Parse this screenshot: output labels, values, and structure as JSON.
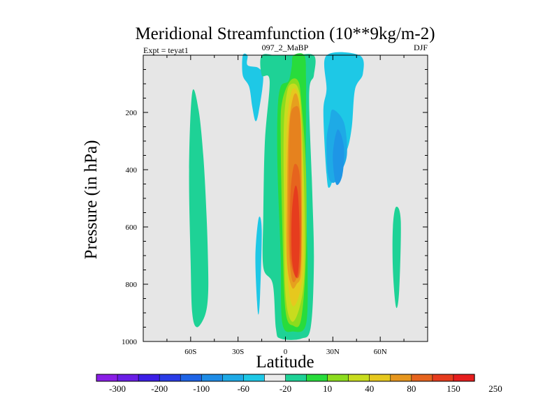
{
  "chart_data": {
    "type": "heatmap",
    "title": "Meridional Streamfunction (10**9kg/m-2)",
    "left_label": "Expt = teyat1",
    "center_label": "097_2_MaBP",
    "right_label": "DJF",
    "xlabel": "Latitude",
    "ylabel": "Pressure (in hPa)",
    "xlim": [
      -90,
      90
    ],
    "ylim": [
      0,
      1000
    ],
    "x_ticks": [
      {
        "value": -60,
        "label": "60S"
      },
      {
        "value": -30,
        "label": "30S"
      },
      {
        "value": 0,
        "label": "0"
      },
      {
        "value": 30,
        "label": "30N"
      },
      {
        "value": 60,
        "label": "60N"
      }
    ],
    "y_ticks": [
      {
        "value": 200,
        "label": "200"
      },
      {
        "value": 400,
        "label": "400"
      },
      {
        "value": 600,
        "label": "600"
      },
      {
        "value": 800,
        "label": "800"
      },
      {
        "value": 1000,
        "label": "1000"
      }
    ],
    "background_color": "#e6e6e6",
    "colorbar": {
      "colors": [
        "#8a1ee6",
        "#6a1ee6",
        "#3c1ee6",
        "#2a3ce6",
        "#1e64e6",
        "#1e8ce6",
        "#1eaae6",
        "#1ec8e6",
        "#ebebeb",
        "#1ed296",
        "#28dc3c",
        "#8cdc1e",
        "#c8dc1e",
        "#e6c81e",
        "#e6961e",
        "#e6641e",
        "#e63c1e",
        "#e61e1e"
      ],
      "labels": [
        "-300",
        "-200",
        "-100",
        "-60",
        "-20",
        "10",
        "40",
        "80",
        "150",
        "250"
      ]
    },
    "levels": {
      "n20": "#1ec8e6",
      "n40": "#1eaae6",
      "n60": "#1e96e6",
      "p10": "#1ed296",
      "p25": "#28dc3c",
      "p40": "#8cdc1e",
      "p60": "#c8dc1e",
      "p80": "#e6c81e",
      "p100": "#e6a01e",
      "p150": "#e6821e",
      "p200": "#e6641e",
      "p250": "#e63c1e"
    },
    "cells": [
      {
        "name": "n20-cell-north-east",
        "level": "n20",
        "pts": [
          [
            26,
            1
          ],
          [
            47,
            1
          ],
          [
            49,
            65
          ],
          [
            44,
            120
          ],
          [
            42,
            250
          ],
          [
            39,
            330
          ],
          [
            33,
            385
          ],
          [
            28,
            462
          ],
          [
            26,
            415
          ],
          [
            24,
            200
          ],
          [
            26,
            120
          ]
        ]
      },
      {
        "name": "n40-cell-north",
        "level": "n40",
        "pts": [
          [
            30,
            190
          ],
          [
            37,
            235
          ],
          [
            39,
            340
          ],
          [
            36,
            400
          ],
          [
            31,
            445
          ],
          [
            27,
            420
          ],
          [
            26,
            300
          ],
          [
            28,
            230
          ]
        ]
      },
      {
        "name": "n60-cell-north",
        "level": "n60",
        "pts": [
          [
            33,
            260
          ],
          [
            37,
            320
          ],
          [
            36,
            420
          ],
          [
            32,
            450
          ],
          [
            30,
            350
          ]
        ]
      },
      {
        "name": "n20-cell-high-west",
        "level": "n20",
        "pts": [
          [
            -27,
            1
          ],
          [
            -24,
            1
          ],
          [
            -24,
            35
          ],
          [
            -17,
            45
          ],
          [
            -14,
            80
          ],
          [
            -17,
            200
          ],
          [
            -19,
            230
          ],
          [
            -21,
            180
          ],
          [
            -23,
            110
          ],
          [
            -27,
            70
          ]
        ]
      },
      {
        "name": "n20-cell-low-west",
        "level": "n20",
        "pts": [
          [
            -17,
            570
          ],
          [
            -15,
            610
          ],
          [
            -16,
            830
          ],
          [
            -17,
            905
          ],
          [
            -18,
            860
          ],
          [
            -19,
            700
          ]
        ]
      },
      {
        "name": "p10-cell-southern",
        "level": "p10",
        "pts": [
          [
            -59,
            130
          ],
          [
            -55,
            190
          ],
          [
            -52,
            350
          ],
          [
            -50,
            550
          ],
          [
            -49,
            720
          ],
          [
            -49,
            840
          ],
          [
            -51,
            910
          ],
          [
            -56,
            950
          ],
          [
            -59,
            900
          ],
          [
            -60,
            720
          ],
          [
            -61,
            400
          ]
        ]
      },
      {
        "name": "p10-cell-far-north",
        "level": "p10",
        "pts": [
          [
            70,
            530
          ],
          [
            73,
            580
          ],
          [
            72,
            820
          ],
          [
            70,
            880
          ],
          [
            68,
            750
          ],
          [
            68,
            600
          ]
        ]
      },
      {
        "name": "p10-cell-equatorial",
        "level": "p10",
        "pts": [
          [
            -15,
            1
          ],
          [
            -5,
            1
          ],
          [
            5,
            1
          ],
          [
            18,
            1
          ],
          [
            18,
            70
          ],
          [
            15,
            140
          ],
          [
            17,
            480
          ],
          [
            18,
            730
          ],
          [
            16,
            950
          ],
          [
            10,
            990
          ],
          [
            -3,
            990
          ],
          [
            -6,
            955
          ],
          [
            -8,
            800
          ],
          [
            -14,
            740
          ],
          [
            -14,
            560
          ],
          [
            -13,
            300
          ],
          [
            -10,
            90
          ],
          [
            -15,
            70
          ]
        ]
      },
      {
        "name": "p25-cell-equatorial",
        "level": "p25",
        "pts": [
          [
            5,
            1
          ],
          [
            12,
            1
          ],
          [
            13,
            80
          ],
          [
            13,
            200
          ],
          [
            13,
            500
          ],
          [
            14,
            750
          ],
          [
            13,
            940
          ],
          [
            5,
            965
          ],
          [
            -2,
            935
          ],
          [
            -3,
            700
          ],
          [
            -5,
            400
          ],
          [
            -5,
            200
          ],
          [
            -3,
            110
          ],
          [
            2,
            90
          ],
          [
            4,
            40
          ]
        ]
      },
      {
        "name": "p40-cell-equatorial",
        "level": "p40",
        "pts": [
          [
            3,
            90
          ],
          [
            8,
            90
          ],
          [
            10,
            160
          ],
          [
            13,
            400
          ],
          [
            13,
            700
          ],
          [
            10,
            920
          ],
          [
            5,
            945
          ],
          [
            0,
            890
          ],
          [
            -2,
            600
          ],
          [
            -3,
            270
          ],
          [
            -2,
            160
          ]
        ]
      },
      {
        "name": "p60-cell-equatorial",
        "level": "p60",
        "pts": [
          [
            4,
            100
          ],
          [
            8,
            115
          ],
          [
            10,
            200
          ],
          [
            12,
            500
          ],
          [
            12,
            760
          ],
          [
            9,
            880
          ],
          [
            4,
            930
          ],
          [
            0,
            830
          ],
          [
            -1,
            500
          ],
          [
            -1,
            250
          ],
          [
            1,
            130
          ]
        ]
      },
      {
        "name": "p80-cell-equatorial",
        "level": "p80",
        "pts": [
          [
            4,
            125
          ],
          [
            8,
            135
          ],
          [
            10,
            240
          ],
          [
            11,
            500
          ],
          [
            11,
            750
          ],
          [
            8,
            850
          ],
          [
            4,
            870
          ],
          [
            1,
            750
          ],
          [
            0,
            500
          ],
          [
            1,
            240
          ]
        ]
      },
      {
        "name": "p100-cell-equatorial",
        "level": "p100",
        "pts": [
          [
            5,
            145
          ],
          [
            8,
            150
          ],
          [
            10,
            260
          ],
          [
            10,
            500
          ],
          [
            10,
            750
          ],
          [
            7,
            800
          ],
          [
            4,
            810
          ],
          [
            1,
            720
          ],
          [
            1,
            500
          ],
          [
            2,
            260
          ]
        ]
      },
      {
        "name": "p150-cell-equatorial",
        "level": "p150",
        "pts": [
          [
            6,
            180
          ],
          [
            9,
            200
          ],
          [
            10,
            350
          ],
          [
            10,
            700
          ],
          [
            7,
            780
          ],
          [
            4,
            780
          ],
          [
            2,
            650
          ],
          [
            2,
            400
          ],
          [
            3,
            220
          ]
        ]
      },
      {
        "name": "p200-cell-equatorial",
        "level": "p200",
        "pts": [
          [
            6,
            380
          ],
          [
            9,
            420
          ],
          [
            10,
            600
          ],
          [
            9,
            760
          ],
          [
            6,
            770
          ],
          [
            3,
            700
          ],
          [
            3,
            520
          ],
          [
            4,
            430
          ]
        ]
      },
      {
        "name": "p250-cell-equatorial",
        "level": "p250",
        "pts": [
          [
            6,
            460
          ],
          [
            8,
            490
          ],
          [
            9,
            640
          ],
          [
            8,
            760
          ],
          [
            6,
            770
          ],
          [
            4,
            700
          ],
          [
            4,
            560
          ]
        ]
      }
    ]
  }
}
